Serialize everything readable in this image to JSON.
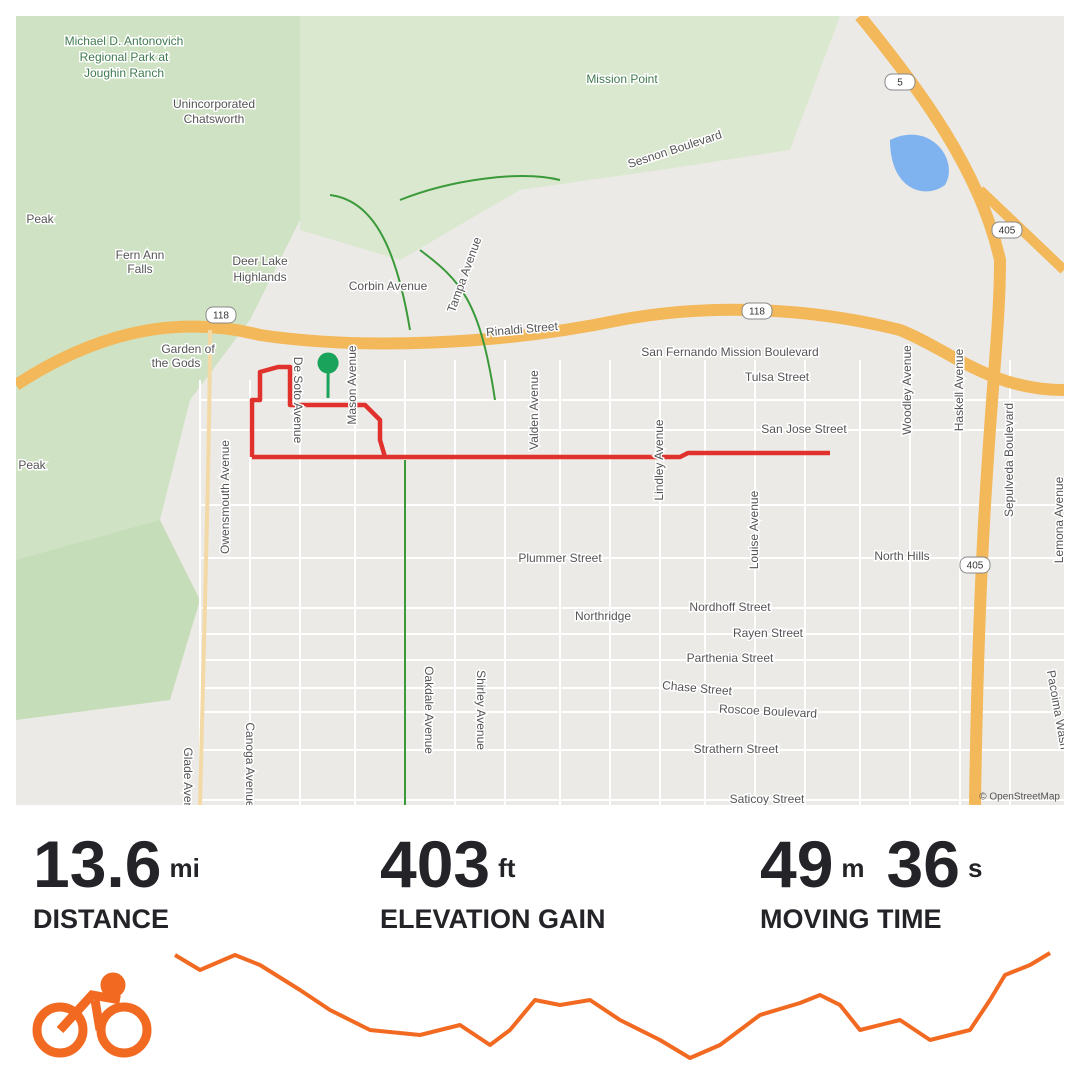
{
  "map": {
    "attribution": "© OpenStreetMap",
    "labels": [
      "Michael D. Antonovich",
      "Regional Park at",
      "Joughin Ranch",
      "Mission Point",
      "Sesnon Boulevard",
      "Unincorporated",
      "Chatsworth",
      "Peak",
      "Fern Ann",
      "Falls",
      "Deer Lake",
      "Highlands",
      "Corbin Avenue",
      "Tampa Avenue",
      "Rinaldi Street",
      "Garden of",
      "the Gods",
      "San Fernando Mission Boulevard",
      "Tulsa Street",
      "San Jose Street",
      "Peak",
      "Owensmouth Avenue",
      "De Soto Avenue",
      "Mason Avenue",
      "Valden Avenue",
      "Lindley Avenue",
      "Louise Avenue",
      "Woodley Avenue",
      "Haskell Avenue",
      "Sepulveda Boulevard",
      "Lemona Avenue",
      "Plummer Street",
      "North Hills",
      "Northridge",
      "Nordhoff Street",
      "Rayen Street",
      "Parthenia Street",
      "Chase Street",
      "Roscoe Boulevard",
      "Strathern Street",
      "Saticoy Street",
      "Oakdale Avenue",
      "Shirley Avenue",
      "Canoga Avenue",
      "Glade Avenue",
      "Pacoima Wash"
    ],
    "shields": [
      "5",
      "118",
      "118",
      "405",
      "405"
    ]
  },
  "stats": [
    {
      "parts": [
        {
          "value": "13.6",
          "unit": "mi"
        }
      ],
      "label": "DISTANCE"
    },
    {
      "parts": [
        {
          "value": "403",
          "unit": "ft"
        }
      ],
      "label": "ELEVATION GAIN"
    },
    {
      "parts": [
        {
          "value": "49",
          "unit": "m"
        },
        {
          "value": "36",
          "unit": "s"
        }
      ],
      "label": "MOVING TIME"
    }
  ]
}
